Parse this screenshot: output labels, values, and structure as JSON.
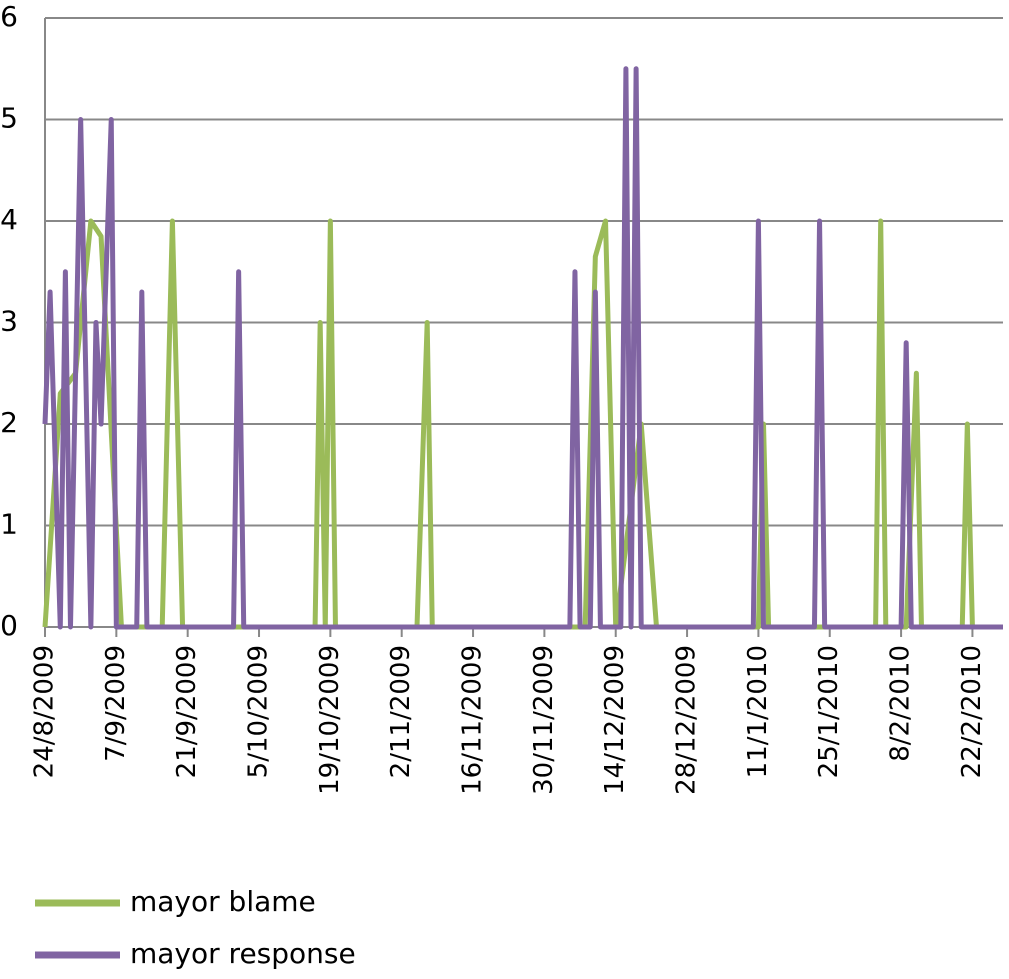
{
  "chart_data": {
    "type": "line",
    "xlim": [
      "2009-08-24",
      "2010-02-28"
    ],
    "xticks": [
      {
        "value": "2009-08-24",
        "label": "24/8/2009"
      },
      {
        "value": "2009-09-07",
        "label": "7/9/2009"
      },
      {
        "value": "2009-09-21",
        "label": "21/9/2009"
      },
      {
        "value": "2009-10-05",
        "label": "5/10/2009"
      },
      {
        "value": "2009-10-19",
        "label": "19/10/2009"
      },
      {
        "value": "2009-11-02",
        "label": "2/11/2009"
      },
      {
        "value": "2009-11-16",
        "label": "16/11/2009"
      },
      {
        "value": "2009-11-30",
        "label": "30/11/2009"
      },
      {
        "value": "2009-12-14",
        "label": "14/12/2009"
      },
      {
        "value": "2009-12-28",
        "label": "28/12/2009"
      },
      {
        "value": "2010-01-11",
        "label": "11/1/2010"
      },
      {
        "value": "2010-01-25",
        "label": "25/1/2010"
      },
      {
        "value": "2010-02-08",
        "label": "8/2/2010"
      },
      {
        "value": "2010-02-22",
        "label": "22/2/2010"
      }
    ],
    "ylim": [
      0,
      6
    ],
    "yticks": [
      0,
      1,
      2,
      3,
      4,
      5,
      6
    ],
    "grid": true,
    "legend": "bottom",
    "series": [
      {
        "name": "mayor blame",
        "color": "#9bbb59",
        "x": [
          "2009-08-24",
          "2009-08-27",
          "2009-08-30",
          "2009-09-02",
          "2009-09-04",
          "2009-09-08",
          "2009-09-16",
          "2009-09-18",
          "2009-09-20",
          "2009-10-16",
          "2009-10-17",
          "2009-10-18",
          "2009-10-19",
          "2009-10-20",
          "2009-11-05",
          "2009-11-07",
          "2009-11-08",
          "2009-12-08",
          "2009-12-10",
          "2009-12-12",
          "2009-12-14",
          "2009-12-19",
          "2009-12-22",
          "2010-01-11",
          "2010-01-12",
          "2010-01-13",
          "2010-02-03",
          "2010-02-04",
          "2010-02-05",
          "2010-02-09",
          "2010-02-11",
          "2010-02-12",
          "2010-02-20",
          "2010-02-21",
          "2010-02-22",
          "2010-02-28"
        ],
        "values": [
          0,
          2.3,
          2.5,
          4,
          3.85,
          0,
          0,
          4,
          0,
          0,
          3,
          0,
          4,
          0,
          0,
          3,
          0,
          0,
          3.65,
          4,
          0,
          2,
          0,
          0,
          2,
          0,
          0,
          4,
          0,
          0,
          2.5,
          0,
          0,
          2,
          0,
          0
        ]
      },
      {
        "name": "mayor response",
        "color": "#8064a2",
        "x": [
          "2009-08-24",
          "2009-08-25",
          "2009-08-27",
          "2009-08-28",
          "2009-08-29",
          "2009-08-31",
          "2009-09-02",
          "2009-09-03",
          "2009-09-04",
          "2009-09-06",
          "2009-09-07",
          "2009-09-11",
          "2009-09-12",
          "2009-09-13",
          "2009-09-30",
          "2009-10-01",
          "2009-10-02",
          "2009-12-05",
          "2009-12-06",
          "2009-12-07",
          "2009-12-09",
          "2009-12-10",
          "2009-12-11",
          "2009-12-15",
          "2009-12-16",
          "2009-12-17",
          "2009-12-18",
          "2009-12-19",
          "2010-01-10",
          "2010-01-11",
          "2010-01-12",
          "2010-01-22",
          "2010-01-23",
          "2010-01-24",
          "2010-02-08",
          "2010-02-09",
          "2010-02-10",
          "2010-02-28"
        ],
        "values": [
          2,
          3.3,
          0,
          3.5,
          0,
          5,
          0,
          3,
          2,
          5,
          0,
          0,
          3.3,
          0,
          0,
          3.5,
          0,
          0,
          3.5,
          0,
          0,
          3.3,
          0,
          0,
          5.5,
          0,
          5.5,
          0,
          0,
          4,
          0,
          0,
          4,
          0,
          0,
          2.8,
          0,
          0
        ]
      }
    ]
  }
}
